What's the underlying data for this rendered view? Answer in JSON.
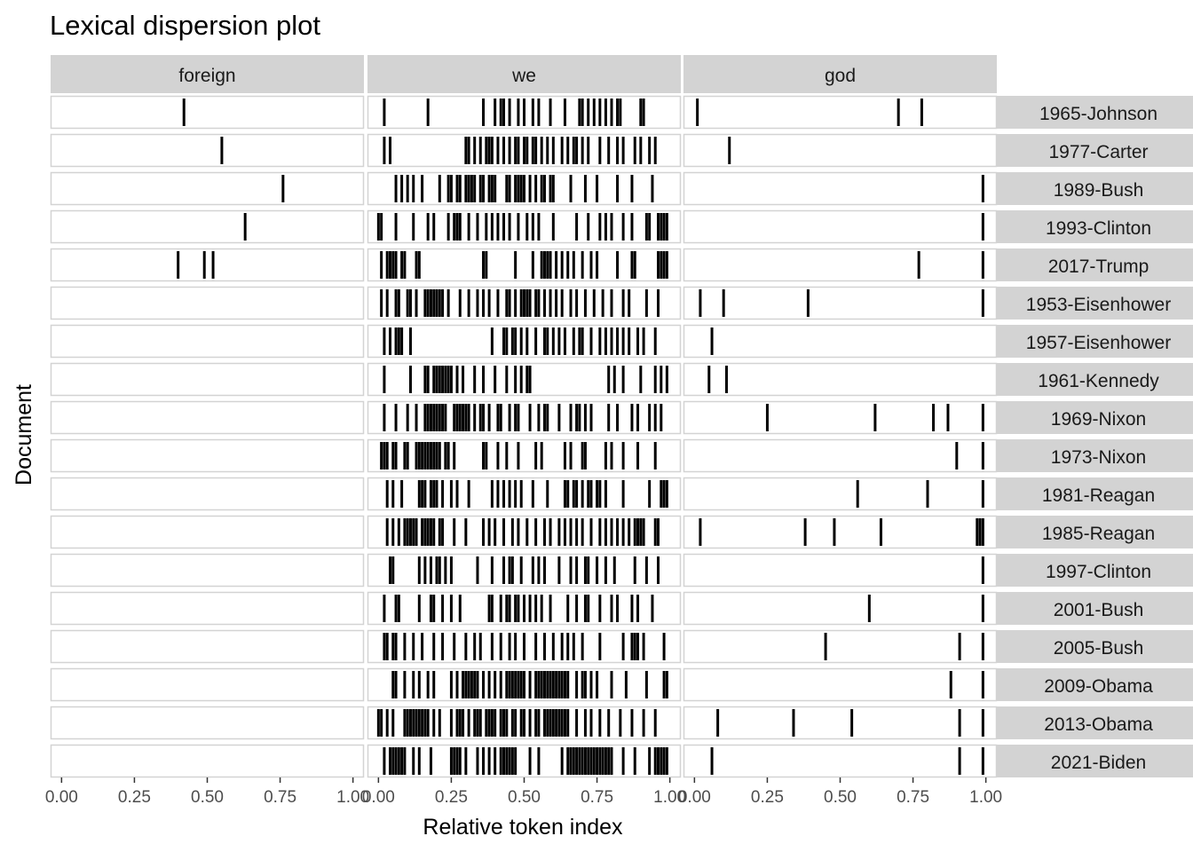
{
  "chart_data": {
    "type": "scatter",
    "title": "Lexical dispersion plot",
    "xlabel": "Relative token index",
    "ylabel": "Document",
    "xlim": [
      0,
      1
    ],
    "x_ticks": [
      "0.00",
      "0.25",
      "0.50",
      "0.75",
      "1.00"
    ],
    "grid": false,
    "legend": "none",
    "facets": [
      "foreign",
      "we",
      "god"
    ],
    "documents": [
      "1965-Johnson",
      "1977-Carter",
      "1989-Bush",
      "1993-Clinton",
      "2017-Trump",
      "1953-Eisenhower",
      "1957-Eisenhower",
      "1961-Kennedy",
      "1969-Nixon",
      "1973-Nixon",
      "1981-Reagan",
      "1985-Reagan",
      "1997-Clinton",
      "2001-Bush",
      "2005-Bush",
      "2009-Obama",
      "2013-Obama",
      "2021-Biden"
    ],
    "colors": {
      "strip": "#d3d3d3",
      "panel_border": "#d3d3d3",
      "mark": "#000000"
    },
    "points": {
      "foreign": {
        "1965-Johnson": [
          0.42
        ],
        "1977-Carter": [
          0.55
        ],
        "1989-Bush": [
          0.76
        ],
        "1993-Clinton": [
          0.63
        ],
        "2017-Trump": [
          0.4,
          0.49,
          0.52
        ]
      },
      "we": {
        "1965-Johnson": [
          0.02,
          0.17,
          0.36,
          0.4,
          0.42,
          0.43,
          0.45,
          0.48,
          0.5,
          0.53,
          0.55,
          0.59,
          0.64,
          0.69,
          0.7,
          0.72,
          0.74,
          0.76,
          0.78,
          0.8,
          0.82,
          0.83,
          0.9,
          0.91
        ],
        "1977-Carter": [
          0.02,
          0.04,
          0.3,
          0.31,
          0.33,
          0.35,
          0.37,
          0.38,
          0.39,
          0.41,
          0.43,
          0.45,
          0.47,
          0.48,
          0.5,
          0.51,
          0.53,
          0.54,
          0.56,
          0.58,
          0.6,
          0.63,
          0.65,
          0.67,
          0.68,
          0.7,
          0.72,
          0.76,
          0.79,
          0.82,
          0.84,
          0.88,
          0.9,
          0.93,
          0.95
        ],
        "1989-Bush": [
          0.06,
          0.08,
          0.1,
          0.12,
          0.15,
          0.21,
          0.24,
          0.25,
          0.27,
          0.28,
          0.3,
          0.31,
          0.32,
          0.33,
          0.35,
          0.36,
          0.38,
          0.39,
          0.4,
          0.44,
          0.45,
          0.47,
          0.48,
          0.49,
          0.5,
          0.52,
          0.54,
          0.56,
          0.57,
          0.59,
          0.6,
          0.66,
          0.71,
          0.75,
          0.82,
          0.87,
          0.94
        ],
        "1993-Clinton": [
          0.0,
          0.01,
          0.06,
          0.12,
          0.17,
          0.19,
          0.24,
          0.26,
          0.27,
          0.28,
          0.31,
          0.34,
          0.37,
          0.39,
          0.41,
          0.43,
          0.45,
          0.48,
          0.51,
          0.53,
          0.55,
          0.6,
          0.68,
          0.72,
          0.76,
          0.78,
          0.8,
          0.84,
          0.87,
          0.92,
          0.93,
          0.96,
          0.97,
          0.98,
          0.99
        ],
        "2017-Trump": [
          0.01,
          0.03,
          0.04,
          0.05,
          0.06,
          0.08,
          0.09,
          0.13,
          0.14,
          0.36,
          0.37,
          0.47,
          0.53,
          0.56,
          0.57,
          0.58,
          0.59,
          0.61,
          0.63,
          0.65,
          0.67,
          0.7,
          0.73,
          0.75,
          0.82,
          0.87,
          0.88,
          0.96,
          0.97,
          0.98,
          0.99
        ],
        "1953-Eisenhower": [
          0.01,
          0.03,
          0.06,
          0.07,
          0.1,
          0.11,
          0.13,
          0.16,
          0.17,
          0.18,
          0.19,
          0.2,
          0.21,
          0.22,
          0.24,
          0.28,
          0.31,
          0.34,
          0.36,
          0.38,
          0.41,
          0.44,
          0.45,
          0.47,
          0.49,
          0.5,
          0.51,
          0.52,
          0.54,
          0.55,
          0.57,
          0.59,
          0.61,
          0.63,
          0.66,
          0.68,
          0.71,
          0.74,
          0.77,
          0.8,
          0.84,
          0.86,
          0.92,
          0.96
        ],
        "1957-Eisenhower": [
          0.02,
          0.04,
          0.06,
          0.07,
          0.08,
          0.11,
          0.39,
          0.43,
          0.44,
          0.46,
          0.47,
          0.49,
          0.51,
          0.54,
          0.57,
          0.58,
          0.6,
          0.62,
          0.64,
          0.67,
          0.69,
          0.7,
          0.73,
          0.76,
          0.78,
          0.8,
          0.82,
          0.84,
          0.86,
          0.89,
          0.91,
          0.95
        ],
        "1961-Kennedy": [
          0.02,
          0.11,
          0.16,
          0.17,
          0.19,
          0.2,
          0.21,
          0.22,
          0.23,
          0.24,
          0.25,
          0.27,
          0.29,
          0.33,
          0.36,
          0.4,
          0.44,
          0.47,
          0.49,
          0.51,
          0.52,
          0.79,
          0.81,
          0.84,
          0.9,
          0.95,
          0.97,
          0.99
        ],
        "1969-Nixon": [
          0.02,
          0.06,
          0.1,
          0.13,
          0.16,
          0.17,
          0.18,
          0.19,
          0.2,
          0.21,
          0.22,
          0.23,
          0.26,
          0.27,
          0.28,
          0.29,
          0.3,
          0.31,
          0.33,
          0.35,
          0.36,
          0.38,
          0.41,
          0.42,
          0.45,
          0.47,
          0.48,
          0.52,
          0.55,
          0.57,
          0.58,
          0.62,
          0.66,
          0.68,
          0.69,
          0.71,
          0.73,
          0.79,
          0.82,
          0.87,
          0.89,
          0.93,
          0.95,
          0.97
        ],
        "1973-Nixon": [
          0.01,
          0.02,
          0.03,
          0.05,
          0.06,
          0.09,
          0.1,
          0.13,
          0.14,
          0.15,
          0.16,
          0.17,
          0.18,
          0.19,
          0.2,
          0.21,
          0.23,
          0.24,
          0.26,
          0.36,
          0.37,
          0.41,
          0.44,
          0.48,
          0.54,
          0.56,
          0.64,
          0.66,
          0.7,
          0.71,
          0.78,
          0.8,
          0.84,
          0.89,
          0.95
        ],
        "1981-Reagan": [
          0.03,
          0.05,
          0.08,
          0.14,
          0.15,
          0.16,
          0.18,
          0.19,
          0.2,
          0.22,
          0.25,
          0.27,
          0.31,
          0.39,
          0.41,
          0.43,
          0.45,
          0.47,
          0.49,
          0.53,
          0.58,
          0.64,
          0.65,
          0.67,
          0.68,
          0.7,
          0.72,
          0.73,
          0.75,
          0.76,
          0.78,
          0.84,
          0.93,
          0.97,
          0.98,
          0.99
        ],
        "1985-Reagan": [
          0.03,
          0.05,
          0.07,
          0.09,
          0.1,
          0.11,
          0.12,
          0.13,
          0.15,
          0.16,
          0.17,
          0.18,
          0.19,
          0.21,
          0.22,
          0.26,
          0.3,
          0.36,
          0.38,
          0.4,
          0.43,
          0.46,
          0.48,
          0.51,
          0.54,
          0.57,
          0.59,
          0.62,
          0.64,
          0.66,
          0.68,
          0.7,
          0.73,
          0.76,
          0.78,
          0.8,
          0.82,
          0.84,
          0.86,
          0.88,
          0.89,
          0.9,
          0.91,
          0.95,
          0.96
        ],
        "1997-Clinton": [
          0.04,
          0.05,
          0.14,
          0.16,
          0.18,
          0.2,
          0.21,
          0.23,
          0.25,
          0.34,
          0.39,
          0.43,
          0.45,
          0.46,
          0.49,
          0.53,
          0.55,
          0.57,
          0.62,
          0.66,
          0.68,
          0.71,
          0.72,
          0.75,
          0.78,
          0.81,
          0.88,
          0.92,
          0.96
        ],
        "2001-Bush": [
          0.02,
          0.06,
          0.07,
          0.14,
          0.18,
          0.19,
          0.22,
          0.25,
          0.28,
          0.38,
          0.39,
          0.42,
          0.44,
          0.45,
          0.47,
          0.48,
          0.5,
          0.52,
          0.54,
          0.56,
          0.59,
          0.65,
          0.68,
          0.71,
          0.72,
          0.76,
          0.8,
          0.82,
          0.87,
          0.89,
          0.94
        ],
        "2005-Bush": [
          0.02,
          0.03,
          0.05,
          0.06,
          0.09,
          0.12,
          0.15,
          0.19,
          0.22,
          0.26,
          0.3,
          0.33,
          0.35,
          0.39,
          0.42,
          0.45,
          0.47,
          0.5,
          0.54,
          0.57,
          0.6,
          0.63,
          0.65,
          0.67,
          0.7,
          0.76,
          0.84,
          0.87,
          0.88,
          0.89,
          0.91,
          0.98
        ],
        "2009-Obama": [
          0.05,
          0.06,
          0.09,
          0.12,
          0.14,
          0.17,
          0.19,
          0.25,
          0.27,
          0.29,
          0.3,
          0.31,
          0.32,
          0.33,
          0.34,
          0.36,
          0.38,
          0.4,
          0.42,
          0.44,
          0.45,
          0.46,
          0.47,
          0.48,
          0.49,
          0.5,
          0.52,
          0.54,
          0.55,
          0.56,
          0.57,
          0.58,
          0.59,
          0.6,
          0.61,
          0.62,
          0.63,
          0.64,
          0.65,
          0.68,
          0.7,
          0.71,
          0.73,
          0.75,
          0.8,
          0.85,
          0.92,
          0.98,
          0.99
        ],
        "2013-Obama": [
          0.0,
          0.01,
          0.03,
          0.05,
          0.09,
          0.1,
          0.11,
          0.12,
          0.13,
          0.14,
          0.15,
          0.16,
          0.17,
          0.19,
          0.21,
          0.25,
          0.27,
          0.28,
          0.29,
          0.31,
          0.33,
          0.34,
          0.35,
          0.37,
          0.38,
          0.39,
          0.4,
          0.42,
          0.43,
          0.44,
          0.46,
          0.47,
          0.49,
          0.5,
          0.52,
          0.54,
          0.55,
          0.57,
          0.58,
          0.59,
          0.6,
          0.61,
          0.62,
          0.63,
          0.64,
          0.65,
          0.68,
          0.71,
          0.73,
          0.76,
          0.79,
          0.83,
          0.87,
          0.91,
          0.95
        ],
        "2021-Biden": [
          0.02,
          0.04,
          0.05,
          0.06,
          0.07,
          0.08,
          0.09,
          0.12,
          0.14,
          0.18,
          0.25,
          0.26,
          0.27,
          0.28,
          0.3,
          0.34,
          0.36,
          0.38,
          0.4,
          0.42,
          0.43,
          0.44,
          0.45,
          0.46,
          0.47,
          0.52,
          0.55,
          0.63,
          0.65,
          0.66,
          0.67,
          0.68,
          0.69,
          0.7,
          0.71,
          0.72,
          0.73,
          0.74,
          0.75,
          0.76,
          0.77,
          0.78,
          0.79,
          0.8,
          0.84,
          0.88,
          0.93,
          0.95,
          0.96,
          0.97,
          0.98,
          0.99
        ]
      },
      "god": {
        "1965-Johnson": [
          0.01,
          0.7,
          0.78
        ],
        "1977-Carter": [
          0.12
        ],
        "1989-Bush": [
          0.99
        ],
        "1993-Clinton": [
          0.99
        ],
        "2017-Trump": [
          0.77,
          0.99
        ],
        "1953-Eisenhower": [
          0.02,
          0.1,
          0.39,
          0.99
        ],
        "1957-Eisenhower": [
          0.06
        ],
        "1961-Kennedy": [
          0.05,
          0.11
        ],
        "1969-Nixon": [
          0.25,
          0.62,
          0.82,
          0.87,
          0.99
        ],
        "1973-Nixon": [
          0.9,
          0.99
        ],
        "1981-Reagan": [
          0.56,
          0.8,
          0.99
        ],
        "1985-Reagan": [
          0.02,
          0.38,
          0.48,
          0.64,
          0.97,
          0.98,
          0.99
        ],
        "1997-Clinton": [
          0.99
        ],
        "2001-Bush": [
          0.6,
          0.99
        ],
        "2005-Bush": [
          0.45,
          0.91,
          0.99
        ],
        "2009-Obama": [
          0.88,
          0.99
        ],
        "2013-Obama": [
          0.08,
          0.34,
          0.54,
          0.91,
          0.99
        ],
        "2021-Biden": [
          0.06,
          0.91,
          0.99
        ]
      }
    }
  }
}
